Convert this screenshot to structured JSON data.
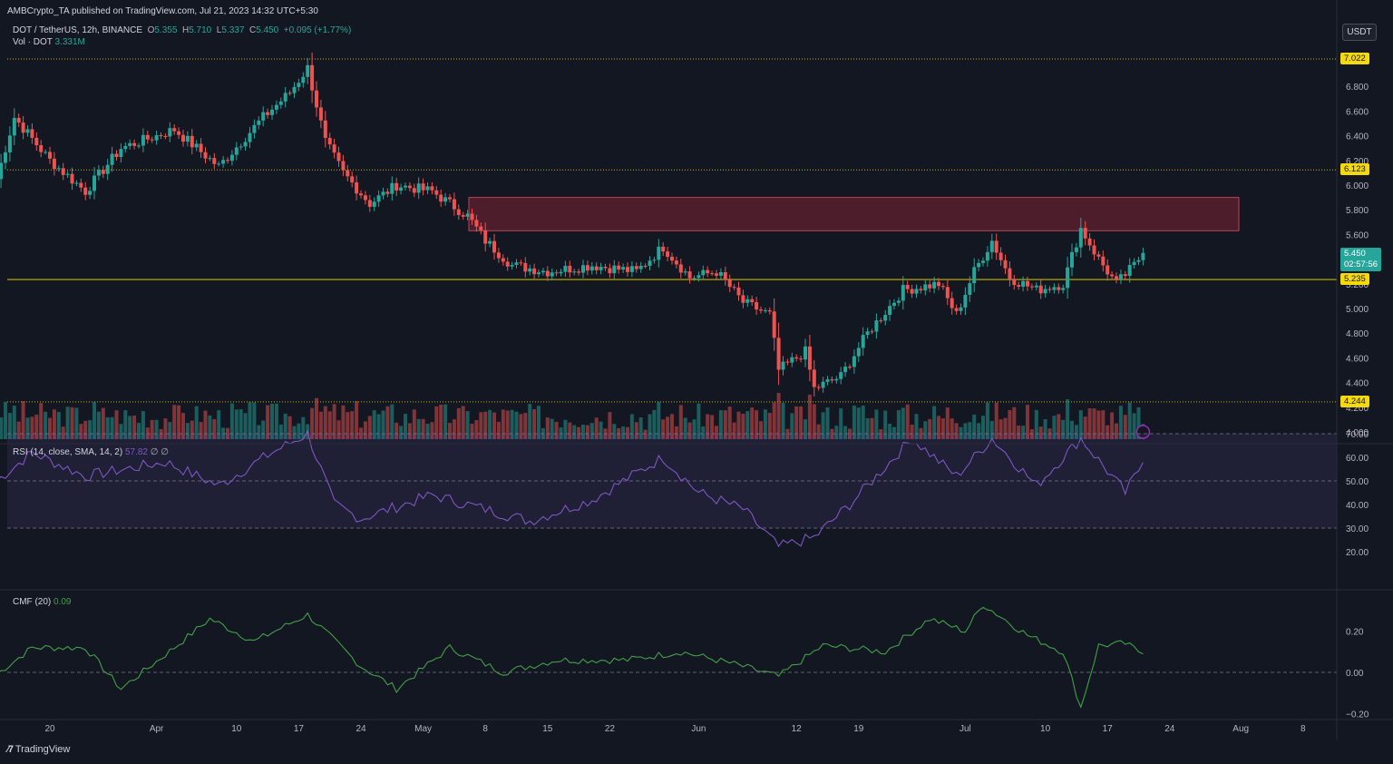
{
  "header": {
    "published": "AMBCrypto_TA published on TradingView.com, Jul 21, 2023 14:32 UTC+5:30",
    "symbol": "DOT / TetherUS, 12h, BINANCE",
    "o_label": "O",
    "o_val": "5.355",
    "h_label": "H",
    "h_val": "5.710",
    "l_label": "L",
    "l_val": "5.337",
    "c_label": "C",
    "c_val": "5.450",
    "change": "+0.095 (+1.77%)",
    "vol_label": "Vol · DOT",
    "vol_val": "3.331M",
    "currency": "USDT"
  },
  "indicators": {
    "rsi_label": "RSI (14, close, SMA, 14, 2)",
    "rsi_val": "57.82",
    "rsi_extra": "∅  ∅",
    "cmf_label": "CMF (20)",
    "cmf_val": "0.09"
  },
  "price_tags": {
    "level_high": "7.022",
    "level_mid": "6.123",
    "current": "5.450",
    "countdown": "02:57:56",
    "support": "5.235",
    "level_low": "4.244"
  },
  "footer": {
    "brand": "TradingView"
  },
  "colors": {
    "bg": "#131722",
    "up": "#26a69a",
    "down": "#ef5350",
    "rsi": "#7e57c2",
    "cmf": "#43a047",
    "level": "#c9b400",
    "zone": "#5c1f2e"
  },
  "chart_data": [
    {
      "type": "candlestick",
      "title": "DOT / TetherUS, 12h, BINANCE",
      "x_ticks": [
        "20",
        "Apr",
        "10",
        "17",
        "24",
        "May",
        "8",
        "15",
        "22",
        "Jun",
        "12",
        "19",
        "Jul",
        "10",
        "17",
        "24",
        "Aug",
        "8"
      ],
      "y_ticks": [
        4.0,
        4.2,
        4.4,
        4.6,
        4.8,
        5.0,
        5.2,
        5.4,
        5.6,
        5.8,
        6.0,
        6.2,
        6.4,
        6.6,
        6.8
      ],
      "ylim": [
        3.95,
        7.25
      ],
      "levels": [
        7.022,
        6.123,
        5.235,
        4.244
      ],
      "resistance_zone": [
        5.63,
        5.9
      ],
      "ohlc_keypoints": [
        {
          "date": "Mar 14",
          "close": 6.05
        },
        {
          "date": "Mar 16",
          "close": 6.55
        },
        {
          "date": "Mar 20",
          "close": 6.2
        },
        {
          "date": "Mar 24",
          "close": 5.95
        },
        {
          "date": "Mar 28",
          "close": 6.3
        },
        {
          "date": "Apr 3",
          "close": 6.45
        },
        {
          "date": "Apr 8",
          "close": 6.15
        },
        {
          "date": "Apr 13",
          "close": 6.55
        },
        {
          "date": "Apr 16",
          "close": 6.75
        },
        {
          "date": "Apr 18",
          "close": 6.95
        },
        {
          "date": "Apr 20",
          "close": 6.35
        },
        {
          "date": "Apr 22",
          "close": 6.1
        },
        {
          "date": "Apr 25",
          "close": 5.85
        },
        {
          "date": "Apr 28",
          "close": 6.0
        },
        {
          "date": "May 2",
          "close": 5.95
        },
        {
          "date": "May 6",
          "close": 5.75
        },
        {
          "date": "May 8",
          "close": 5.55
        },
        {
          "date": "May 11",
          "close": 5.35
        },
        {
          "date": "May 15",
          "close": 5.3
        },
        {
          "date": "May 20",
          "close": 5.35
        },
        {
          "date": "May 25",
          "close": 5.3
        },
        {
          "date": "May 28",
          "close": 5.5
        },
        {
          "date": "May 31",
          "close": 5.25
        },
        {
          "date": "Jun 3",
          "close": 5.3
        },
        {
          "date": "Jun 6",
          "close": 5.05
        },
        {
          "date": "Jun 9",
          "close": 4.95
        },
        {
          "date": "Jun 10",
          "close": 4.5
        },
        {
          "date": "Jun 13",
          "close": 4.65
        },
        {
          "date": "Jun 14",
          "close": 4.35
        },
        {
          "date": "Jun 17",
          "close": 4.45
        },
        {
          "date": "Jun 20",
          "close": 4.8
        },
        {
          "date": "Jun 24",
          "close": 5.15
        },
        {
          "date": "Jun 28",
          "close": 5.2
        },
        {
          "date": "Jun 30",
          "close": 4.95
        },
        {
          "date": "Jul 2",
          "close": 5.3
        },
        {
          "date": "Jul 4",
          "close": 5.55
        },
        {
          "date": "Jul 6",
          "close": 5.25
        },
        {
          "date": "Jul 9",
          "close": 5.15
        },
        {
          "date": "Jul 12",
          "close": 5.2
        },
        {
          "date": "Jul 14",
          "close": 5.65
        },
        {
          "date": "Jul 16",
          "close": 5.4
        },
        {
          "date": "Jul 18",
          "close": 5.2
        },
        {
          "date": "Jul 20",
          "close": 5.35
        },
        {
          "date": "Jul 21",
          "close": 5.45
        }
      ]
    },
    {
      "type": "bar",
      "title": "Vol · DOT",
      "last_value": "3.331M"
    },
    {
      "type": "line",
      "title": "RSI (14, close, SMA, 14, 2)",
      "y_ticks": [
        20.0,
        30.0,
        40.0,
        50.0,
        60.0,
        70.0
      ],
      "band": [
        30,
        70
      ],
      "keypoints": [
        {
          "date": "Mar 14",
          "value": 50
        },
        {
          "date": "Mar 18",
          "value": 62
        },
        {
          "date": "Mar 24",
          "value": 52
        },
        {
          "date": "Apr 2",
          "value": 58
        },
        {
          "date": "Apr 8",
          "value": 48
        },
        {
          "date": "Apr 14",
          "value": 62
        },
        {
          "date": "Apr 18",
          "value": 70
        },
        {
          "date": "Apr 21",
          "value": 40
        },
        {
          "date": "Apr 24",
          "value": 34
        },
        {
          "date": "May 2",
          "value": 44
        },
        {
          "date": "May 8",
          "value": 38
        },
        {
          "date": "May 13",
          "value": 33
        },
        {
          "date": "May 20",
          "value": 42
        },
        {
          "date": "May 28",
          "value": 60
        },
        {
          "date": "Jun 1",
          "value": 45
        },
        {
          "date": "Jun 6",
          "value": 38
        },
        {
          "date": "Jun 10",
          "value": 22
        },
        {
          "date": "Jun 14",
          "value": 26
        },
        {
          "date": "Jun 18",
          "value": 40
        },
        {
          "date": "Jun 25",
          "value": 68
        },
        {
          "date": "Jun 30",
          "value": 52
        },
        {
          "date": "Jul 4",
          "value": 68
        },
        {
          "date": "Jul 9",
          "value": 48
        },
        {
          "date": "Jul 14",
          "value": 68
        },
        {
          "date": "Jul 19",
          "value": 45
        },
        {
          "date": "Jul 21",
          "value": 57.82
        }
      ]
    },
    {
      "type": "line",
      "title": "CMF (20)",
      "y_ticks": [
        -0.2,
        0.0,
        0.2
      ],
      "keypoints": [
        {
          "date": "Mar 14",
          "value": -0.01
        },
        {
          "date": "Mar 18",
          "value": 0.12
        },
        {
          "date": "Mar 24",
          "value": 0.12
        },
        {
          "date": "Mar 28",
          "value": -0.08
        },
        {
          "date": "Apr 3",
          "value": 0.12
        },
        {
          "date": "Apr 7",
          "value": 0.26
        },
        {
          "date": "Apr 12",
          "value": 0.15
        },
        {
          "date": "Apr 18",
          "value": 0.28
        },
        {
          "date": "Apr 24",
          "value": 0.03
        },
        {
          "date": "Apr 28",
          "value": -0.08
        },
        {
          "date": "May 4",
          "value": 0.12
        },
        {
          "date": "May 10",
          "value": 0.0
        },
        {
          "date": "May 16",
          "value": 0.06
        },
        {
          "date": "May 24",
          "value": 0.06
        },
        {
          "date": "May 30",
          "value": 0.1
        },
        {
          "date": "Jun 5",
          "value": 0.04
        },
        {
          "date": "Jun 10",
          "value": -0.02
        },
        {
          "date": "Jun 15",
          "value": 0.13
        },
        {
          "date": "Jun 22",
          "value": 0.1
        },
        {
          "date": "Jun 27",
          "value": 0.26
        },
        {
          "date": "Jul 1",
          "value": 0.2
        },
        {
          "date": "Jul 3",
          "value": 0.33
        },
        {
          "date": "Jul 8",
          "value": 0.18
        },
        {
          "date": "Jul 12",
          "value": 0.1
        },
        {
          "date": "Jul 14",
          "value": -0.17
        },
        {
          "date": "Jul 16",
          "value": 0.13
        },
        {
          "date": "Jul 19",
          "value": 0.14
        },
        {
          "date": "Jul 21",
          "value": 0.09
        }
      ]
    }
  ]
}
